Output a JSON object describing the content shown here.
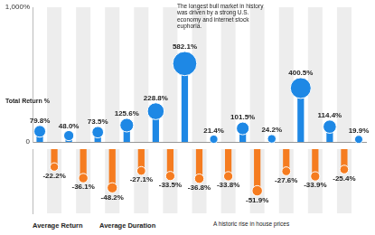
{
  "chart_data": [
    {
      "type": "bar",
      "categories": [
        null,
        null,
        null,
        null,
        null,
        null,
        null,
        null,
        null,
        null,
        null,
        null,
        null,
        null,
        null,
        null,
        null,
        null,
        null,
        null,
        null,
        null,
        null
      ],
      "values": [
        79.8,
        null,
        48.0,
        null,
        73.5,
        null,
        125.6,
        null,
        228.8,
        null,
        582.1,
        null,
        21.4,
        null,
        101.5,
        null,
        24.2,
        null,
        400.5,
        null,
        114.4,
        null,
        19.9
      ],
      "value_labels": [
        "79.8%",
        null,
        "48.0%",
        null,
        "73.5%",
        null,
        "125.6%",
        null,
        "228.8%",
        null,
        "582.1%",
        null,
        "21.4%",
        null,
        "101.5%",
        null,
        "24.2%",
        null,
        "400.5%",
        null,
        "114.4%",
        null,
        "19.9%"
      ],
      "color": "#1e88e5",
      "ylim": [
        0,
        1000
      ],
      "yticks": [
        0,
        {
          "value": 1000,
          "label": "1,000%"
        }
      ],
      "grid": false,
      "data_labels": true,
      "tick_labels": "y",
      "annotations": [
        "Total Return %",
        "The longest bull market in history was driven by a strong U.S. economy and internet stock euphoria."
      ]
    },
    {
      "type": "bar",
      "categories": [
        null,
        null,
        null,
        null,
        null,
        null,
        null,
        null,
        null,
        null,
        null,
        null,
        null,
        null,
        null,
        null,
        null,
        null,
        null,
        null,
        null,
        null,
        null
      ],
      "values": [
        null,
        -22.2,
        null,
        -36.1,
        null,
        -48.2,
        null,
        -27.1,
        null,
        -33.5,
        null,
        -36.8,
        null,
        -33.8,
        null,
        -51.9,
        null,
        -27.6,
        null,
        -33.9,
        null,
        -25.4,
        null
      ],
      "value_labels": [
        null,
        "-22.2%",
        null,
        "-36.1%",
        null,
        "-48.2%",
        null,
        "-27.1%",
        null,
        "-33.5%",
        null,
        "-36.8%",
        null,
        "-33.8%",
        null,
        "-51.9%",
        null,
        "-27.6%",
        null,
        "-33.9%",
        null,
        "-25.4%",
        null
      ],
      "color": "#f57c20",
      "ylim": [
        -80,
        0
      ],
      "grid": false,
      "data_labels": true,
      "tick_labels": false,
      "annotations": [
        "A historic rise in house prices",
        "Average Return",
        "Average Duration"
      ]
    }
  ]
}
